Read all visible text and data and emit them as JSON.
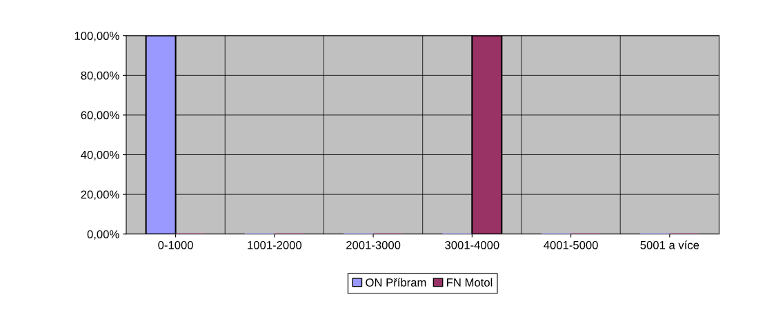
{
  "chart_data": {
    "type": "bar",
    "categories": [
      "0-1000",
      "1001-2000",
      "2001-3000",
      "3001-4000",
      "4001-5000",
      "5001 a více"
    ],
    "series": [
      {
        "name": "ON Příbram",
        "color": "#9999ff",
        "values": [
          100,
          0,
          0,
          0,
          0,
          0
        ]
      },
      {
        "name": "FN Motol",
        "color": "#993366",
        "values": [
          0,
          0,
          0,
          100,
          0,
          0
        ]
      }
    ],
    "ylim": [
      0,
      100
    ],
    "yticks": [
      {
        "value": 0,
        "label": "0,00%"
      },
      {
        "value": 20,
        "label": "20,00%"
      },
      {
        "value": 40,
        "label": "40,00%"
      },
      {
        "value": 60,
        "label": "60,00%"
      },
      {
        "value": 80,
        "label": "80,00%"
      },
      {
        "value": 100,
        "label": "100,00%"
      }
    ],
    "grid": true,
    "legend": "bottom"
  }
}
